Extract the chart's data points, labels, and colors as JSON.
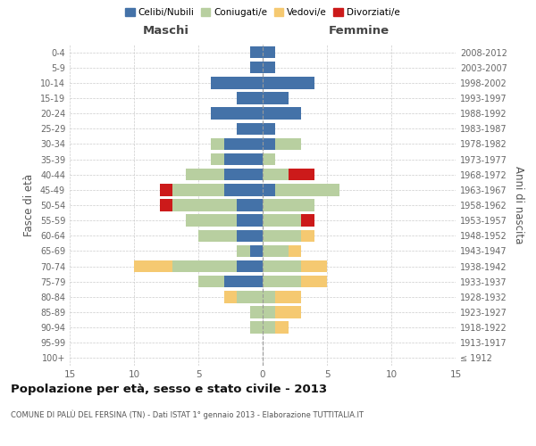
{
  "age_groups": [
    "100+",
    "95-99",
    "90-94",
    "85-89",
    "80-84",
    "75-79",
    "70-74",
    "65-69",
    "60-64",
    "55-59",
    "50-54",
    "45-49",
    "40-44",
    "35-39",
    "30-34",
    "25-29",
    "20-24",
    "15-19",
    "10-14",
    "5-9",
    "0-4"
  ],
  "birth_years": [
    "≤ 1912",
    "1913-1917",
    "1918-1922",
    "1923-1927",
    "1928-1932",
    "1933-1937",
    "1938-1942",
    "1943-1947",
    "1948-1952",
    "1953-1957",
    "1958-1962",
    "1963-1967",
    "1968-1972",
    "1973-1977",
    "1978-1982",
    "1983-1987",
    "1988-1992",
    "1993-1997",
    "1998-2002",
    "2003-2007",
    "2008-2012"
  ],
  "males": {
    "celibi": [
      0,
      0,
      0,
      0,
      0,
      3,
      2,
      1,
      2,
      2,
      2,
      3,
      3,
      3,
      3,
      2,
      4,
      2,
      4,
      1,
      1
    ],
    "coniugati": [
      0,
      0,
      1,
      1,
      2,
      2,
      5,
      1,
      3,
      4,
      5,
      4,
      3,
      1,
      1,
      0,
      0,
      0,
      0,
      0,
      0
    ],
    "vedovi": [
      0,
      0,
      0,
      0,
      1,
      0,
      3,
      0,
      0,
      0,
      0,
      0,
      0,
      0,
      0,
      0,
      0,
      0,
      0,
      0,
      0
    ],
    "divorziati": [
      0,
      0,
      0,
      0,
      0,
      0,
      0,
      0,
      0,
      0,
      1,
      1,
      0,
      0,
      0,
      0,
      0,
      0,
      0,
      0,
      0
    ]
  },
  "females": {
    "nubili": [
      0,
      0,
      0,
      0,
      0,
      0,
      0,
      0,
      0,
      0,
      0,
      1,
      0,
      0,
      1,
      1,
      3,
      2,
      4,
      1,
      1
    ],
    "coniugate": [
      0,
      0,
      1,
      1,
      1,
      3,
      3,
      2,
      3,
      3,
      4,
      5,
      2,
      1,
      2,
      0,
      0,
      0,
      0,
      0,
      0
    ],
    "vedove": [
      0,
      0,
      1,
      2,
      2,
      2,
      2,
      1,
      1,
      0,
      0,
      0,
      0,
      0,
      0,
      0,
      0,
      0,
      0,
      0,
      0
    ],
    "divorziate": [
      0,
      0,
      0,
      0,
      0,
      0,
      0,
      0,
      0,
      1,
      0,
      0,
      2,
      0,
      0,
      0,
      0,
      0,
      0,
      0,
      0
    ]
  },
  "colors": {
    "celibi": "#4472a8",
    "coniugati": "#b8cfa0",
    "vedovi": "#f5c971",
    "divorziati": "#cc1a1a"
  },
  "xlim": 15,
  "title": "Popolazione per età, sesso e stato civile - 2013",
  "subtitle": "COMUNE DI PALÙ DEL FERSINA (TN) - Dati ISTAT 1° gennaio 2013 - Elaborazione TUTTITALIA.IT",
  "xlabel_left": "Maschi",
  "xlabel_right": "Femmine",
  "ylabel_left": "Fasce di età",
  "ylabel_right": "Anni di nascita",
  "legend_labels": [
    "Celibi/Nubili",
    "Coniugati/e",
    "Vedovi/e",
    "Divorziati/e"
  ],
  "background_color": "#ffffff"
}
